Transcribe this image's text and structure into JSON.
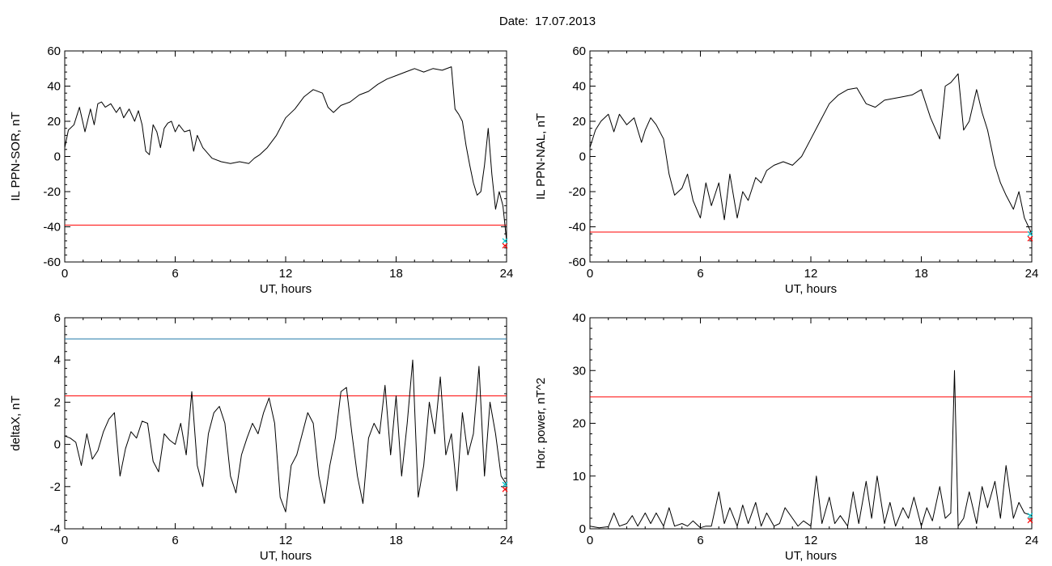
{
  "header": {
    "date_text": "Date:  17.07.2013"
  },
  "colors": {
    "trace": "#000000",
    "threshold_red": "#ff0000",
    "threshold_blue": "#1f78a8",
    "marker_cyan": "#00c8d0"
  },
  "chart_data": [
    {
      "type": "line",
      "id": "sor",
      "ylabel": "IL PPN-SOR, nT",
      "xlabel": "UT, hours",
      "xlim": [
        0,
        24
      ],
      "ylim": [
        -60,
        60
      ],
      "xticks": [
        0,
        6,
        12,
        18,
        24
      ],
      "yticks": [
        -60,
        -40,
        -20,
        0,
        20,
        40,
        60
      ],
      "grid": false,
      "thresholds": [
        {
          "y": -39,
          "color": "red"
        }
      ],
      "series": [
        {
          "x": [
            0,
            0.2,
            0.5,
            0.8,
            1.1,
            1.4,
            1.6,
            1.8,
            2.0,
            2.2,
            2.5,
            2.8,
            3.0,
            3.2,
            3.5,
            3.8,
            4.0,
            4.2,
            4.4,
            4.6,
            4.8,
            5.0,
            5.2,
            5.4,
            5.6,
            5.8,
            6.0,
            6.2,
            6.5,
            6.8,
            7.0,
            7.2,
            7.5,
            8.0,
            8.5,
            9.0,
            9.5,
            10.0,
            10.3,
            10.6,
            11.0,
            11.5,
            12.0,
            12.5,
            13.0,
            13.5,
            14.0,
            14.3,
            14.6,
            15.0,
            15.5,
            16.0,
            16.5,
            17.0,
            17.5,
            18.0,
            18.5,
            19.0,
            19.5,
            20.0,
            20.5,
            21.0,
            21.2,
            21.4,
            21.6,
            21.8,
            22.0,
            22.2,
            22.4,
            22.6,
            22.8,
            23.0,
            23.2,
            23.4,
            23.6,
            23.8,
            24.0
          ],
          "y": [
            5,
            15,
            18,
            28,
            14,
            27,
            18,
            30,
            31,
            28,
            30,
            25,
            28,
            22,
            27,
            20,
            26,
            18,
            3,
            1,
            18,
            14,
            5,
            16,
            19,
            20,
            14,
            18,
            14,
            15,
            3,
            12,
            5,
            -1,
            -3,
            -4,
            -3,
            -4,
            -1,
            1,
            5,
            12,
            22,
            27,
            34,
            38,
            36,
            28,
            25,
            29,
            31,
            35,
            37,
            41,
            44,
            46,
            48,
            50,
            48,
            50,
            49,
            51,
            27,
            24,
            20,
            6,
            -5,
            -15,
            -22,
            -20,
            -5,
            16,
            -10,
            -30,
            -20,
            -28,
            -48
          ]
        }
      ]
    },
    {
      "type": "line",
      "id": "nal",
      "ylabel": "IL PPN-NAL, nT",
      "xlabel": "UT, hours",
      "xlim": [
        0,
        24
      ],
      "ylim": [
        -60,
        60
      ],
      "xticks": [
        0,
        6,
        12,
        18,
        24
      ],
      "yticks": [
        -60,
        -40,
        -20,
        0,
        20,
        40,
        60
      ],
      "grid": false,
      "thresholds": [
        {
          "y": -43,
          "color": "red"
        }
      ],
      "series": [
        {
          "x": [
            0,
            0.3,
            0.6,
            1.0,
            1.3,
            1.6,
            2.0,
            2.4,
            2.8,
            3.0,
            3.3,
            3.6,
            4.0,
            4.3,
            4.6,
            5.0,
            5.3,
            5.6,
            6.0,
            6.3,
            6.6,
            7.0,
            7.3,
            7.6,
            8.0,
            8.3,
            8.6,
            9.0,
            9.3,
            9.6,
            10.0,
            10.5,
            11.0,
            11.5,
            12.0,
            12.5,
            13.0,
            13.5,
            14.0,
            14.5,
            15.0,
            15.5,
            16.0,
            16.5,
            17.0,
            17.5,
            18.0,
            18.5,
            19.0,
            19.3,
            19.6,
            20.0,
            20.3,
            20.6,
            21.0,
            21.3,
            21.6,
            22.0,
            22.3,
            22.6,
            23.0,
            23.3,
            23.6,
            24.0
          ],
          "y": [
            5,
            15,
            20,
            24,
            14,
            24,
            18,
            22,
            8,
            15,
            22,
            18,
            10,
            -10,
            -22,
            -18,
            -10,
            -25,
            -35,
            -15,
            -28,
            -15,
            -36,
            -10,
            -35,
            -20,
            -25,
            -12,
            -15,
            -8,
            -5,
            -3,
            -5,
            0,
            10,
            20,
            30,
            35,
            38,
            39,
            30,
            28,
            32,
            33,
            34,
            35,
            38,
            22,
            10,
            40,
            42,
            47,
            15,
            20,
            38,
            25,
            15,
            -5,
            -15,
            -22,
            -30,
            -20,
            -35,
            -44
          ]
        }
      ]
    },
    {
      "type": "line",
      "id": "deltax",
      "ylabel": "deltaX, nT",
      "xlabel": "UT, hours",
      "xlim": [
        0,
        24
      ],
      "ylim": [
        -4,
        6
      ],
      "xticks": [
        0,
        6,
        12,
        18,
        24
      ],
      "yticks": [
        -4,
        -2,
        0,
        2,
        4,
        6
      ],
      "grid": false,
      "thresholds": [
        {
          "y": 5,
          "color": "blue"
        },
        {
          "y": 2.3,
          "color": "red"
        }
      ],
      "series": [
        {
          "x": [
            0,
            0.3,
            0.6,
            0.9,
            1.2,
            1.5,
            1.8,
            2.1,
            2.4,
            2.7,
            3.0,
            3.3,
            3.6,
            3.9,
            4.2,
            4.5,
            4.8,
            5.1,
            5.4,
            5.7,
            6.0,
            6.3,
            6.6,
            6.9,
            7.2,
            7.5,
            7.8,
            8.1,
            8.4,
            8.7,
            9.0,
            9.3,
            9.6,
            9.9,
            10.2,
            10.5,
            10.8,
            11.1,
            11.4,
            11.7,
            12.0,
            12.3,
            12.6,
            12.9,
            13.2,
            13.5,
            13.8,
            14.1,
            14.4,
            14.7,
            15.0,
            15.3,
            15.6,
            15.9,
            16.2,
            16.5,
            16.8,
            17.1,
            17.4,
            17.7,
            18.0,
            18.3,
            18.6,
            18.9,
            19.2,
            19.5,
            19.8,
            20.1,
            20.4,
            20.7,
            21.0,
            21.3,
            21.6,
            21.9,
            22.2,
            22.5,
            22.8,
            23.1,
            23.4,
            23.7,
            24.0
          ],
          "y": [
            0.4,
            0.3,
            0.1,
            -1.0,
            0.5,
            -0.7,
            -0.3,
            0.6,
            1.2,
            1.5,
            -1.5,
            -0.2,
            0.6,
            0.3,
            1.1,
            1.0,
            -0.8,
            -1.3,
            0.5,
            0.2,
            0.0,
            1.0,
            -0.5,
            2.5,
            -1.0,
            -2.0,
            0.5,
            1.5,
            1.8,
            1.0,
            -1.5,
            -2.3,
            -0.5,
            0.3,
            1.0,
            0.5,
            1.5,
            2.2,
            1.0,
            -2.5,
            -3.2,
            -1.0,
            -0.5,
            0.5,
            1.5,
            1.0,
            -1.5,
            -2.8,
            -1.0,
            0.3,
            2.5,
            2.7,
            0.5,
            -1.5,
            -2.8,
            0.3,
            1.0,
            0.5,
            2.8,
            -0.5,
            2.3,
            -1.5,
            1.0,
            4.0,
            -2.5,
            -1.0,
            2.0,
            0.5,
            3.2,
            -0.5,
            0.5,
            -2.2,
            1.5,
            -0.5,
            0.5,
            3.7,
            -1.5,
            2.0,
            0.5,
            -1.5,
            -1.9
          ]
        }
      ]
    },
    {
      "type": "line",
      "id": "hpower",
      "ylabel": "Hor. power, nT^2",
      "xlabel": "UT, hours",
      "xlim": [
        0,
        24
      ],
      "ylim": [
        0,
        40
      ],
      "xticks": [
        0,
        6,
        12,
        18,
        24
      ],
      "yticks": [
        0,
        10,
        20,
        30,
        40
      ],
      "grid": false,
      "thresholds": [
        {
          "y": 25,
          "color": "red"
        }
      ],
      "series": [
        {
          "x": [
            0,
            0.5,
            1.0,
            1.3,
            1.6,
            2.0,
            2.3,
            2.6,
            3.0,
            3.3,
            3.6,
            4.0,
            4.3,
            4.6,
            5.0,
            5.3,
            5.6,
            6.0,
            6.3,
            6.6,
            7.0,
            7.3,
            7.6,
            8.0,
            8.3,
            8.6,
            9.0,
            9.3,
            9.6,
            10.0,
            10.3,
            10.6,
            11.0,
            11.3,
            11.6,
            12.0,
            12.3,
            12.6,
            13.0,
            13.3,
            13.6,
            14.0,
            14.3,
            14.6,
            15.0,
            15.3,
            15.6,
            16.0,
            16.3,
            16.6,
            17.0,
            17.3,
            17.6,
            18.0,
            18.3,
            18.6,
            19.0,
            19.3,
            19.6,
            19.8,
            20.0,
            20.3,
            20.6,
            21.0,
            21.3,
            21.6,
            22.0,
            22.3,
            22.6,
            23.0,
            23.3,
            23.6,
            24.0
          ],
          "y": [
            0.5,
            0.2,
            0.4,
            3.0,
            0.5,
            1.0,
            2.5,
            0.5,
            3.0,
            1.0,
            3.0,
            0.5,
            4.0,
            0.5,
            1.0,
            0.5,
            1.5,
            0.2,
            0.5,
            0.5,
            7.0,
            1.0,
            4.0,
            0.5,
            4.5,
            1.0,
            5.0,
            0.5,
            3.0,
            0.5,
            1.0,
            4.0,
            2.0,
            0.5,
            1.5,
            0.5,
            10.0,
            1.0,
            6.0,
            1.0,
            2.5,
            0.5,
            7.0,
            1.0,
            9.0,
            2.0,
            10.0,
            1.0,
            5.0,
            0.5,
            4.0,
            2.0,
            6.0,
            0.5,
            4.0,
            1.5,
            8.0,
            2.0,
            3.0,
            30.0,
            0.5,
            2.0,
            7.0,
            1.0,
            8.0,
            4.0,
            9.0,
            2.0,
            12.0,
            2.0,
            5.0,
            3.0,
            2.5
          ]
        }
      ]
    }
  ]
}
